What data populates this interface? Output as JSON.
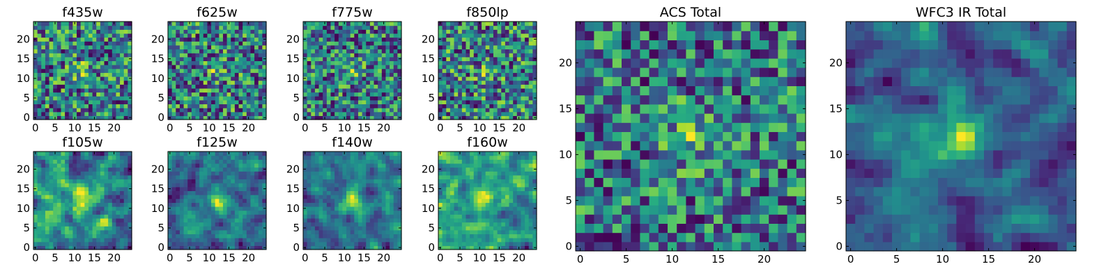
{
  "chart_data": {
    "type": "heatmap",
    "colormap": "viridis",
    "grid": false,
    "panels": [
      {
        "id": "f435w",
        "title": "f435w",
        "cells": 25,
        "xticks": [
          0,
          5,
          10,
          15,
          20
        ],
        "yticks": [
          0,
          5,
          10,
          15,
          20
        ],
        "xlim": [
          0,
          24
        ],
        "ylim": [
          0,
          24
        ],
        "seed": 11,
        "sigma": 0.0,
        "peak": 0.25
      },
      {
        "id": "f625w",
        "title": "f625w",
        "cells": 25,
        "xticks": [
          0,
          5,
          10,
          15,
          20
        ],
        "yticks": [
          0,
          5,
          10,
          15,
          20
        ],
        "xlim": [
          0,
          24
        ],
        "ylim": [
          0,
          24
        ],
        "seed": 23,
        "sigma": 0.0,
        "peak": 0.25
      },
      {
        "id": "f775w",
        "title": "f775w",
        "cells": 25,
        "xticks": [
          0,
          5,
          10,
          15,
          20
        ],
        "yticks": [
          0,
          5,
          10,
          15,
          20
        ],
        "xlim": [
          0,
          24
        ],
        "ylim": [
          0,
          24
        ],
        "seed": 37,
        "sigma": 0.0,
        "peak": 0.25
      },
      {
        "id": "f850lp",
        "title": "f850lp",
        "cells": 25,
        "xticks": [
          0,
          5,
          10,
          15,
          20
        ],
        "yticks": [
          0,
          5,
          10,
          15,
          20
        ],
        "xlim": [
          0,
          24
        ],
        "ylim": [
          0,
          24
        ],
        "seed": 41,
        "sigma": 0.0,
        "peak": 0.2
      },
      {
        "id": "f105w",
        "title": "f105w",
        "cells": 25,
        "xticks": [
          0,
          5,
          10,
          15,
          20
        ],
        "yticks": [
          0,
          5,
          10,
          15,
          20
        ],
        "xlim": [
          0,
          24
        ],
        "ylim": [
          0,
          24
        ],
        "seed": 53,
        "sigma": 1.0,
        "peak": 0.3
      },
      {
        "id": "f125w",
        "title": "f125w",
        "cells": 25,
        "xticks": [
          0,
          5,
          10,
          15,
          20
        ],
        "yticks": [
          0,
          5,
          10,
          15,
          20
        ],
        "xlim": [
          0,
          24
        ],
        "ylim": [
          0,
          24
        ],
        "seed": 67,
        "sigma": 1.0,
        "peak": 0.3
      },
      {
        "id": "f140w",
        "title": "f140w",
        "cells": 25,
        "xticks": [
          0,
          5,
          10,
          15,
          20
        ],
        "yticks": [
          0,
          5,
          10,
          15,
          20
        ],
        "xlim": [
          0,
          24
        ],
        "ylim": [
          0,
          24
        ],
        "seed": 79,
        "sigma": 1.0,
        "peak": 0.45
      },
      {
        "id": "f160w",
        "title": "f160w",
        "cells": 25,
        "xticks": [
          0,
          5,
          10,
          15,
          20
        ],
        "yticks": [
          0,
          5,
          10,
          15,
          20
        ],
        "xlim": [
          0,
          24
        ],
        "ylim": [
          0,
          24
        ],
        "seed": 83,
        "sigma": 1.0,
        "peak": 0.4
      },
      {
        "id": "acs-total",
        "title": "ACS Total",
        "cells": 25,
        "xticks": [
          0,
          5,
          10,
          15,
          20
        ],
        "yticks": [
          0,
          5,
          10,
          15,
          20
        ],
        "xlim": [
          0,
          24
        ],
        "ylim": [
          0,
          24
        ],
        "seed": 97,
        "sigma": 0.0,
        "peak": 0.35
      },
      {
        "id": "wfc3-ir-total",
        "title": "WFC3 IR Total",
        "cells": 25,
        "xticks": [
          0,
          5,
          10,
          15,
          20
        ],
        "yticks": [
          0,
          5,
          10,
          15,
          20
        ],
        "xlim": [
          0,
          24
        ],
        "ylim": [
          0,
          24
        ],
        "seed": 101,
        "sigma": 1.0,
        "peak": 0.6
      }
    ]
  }
}
